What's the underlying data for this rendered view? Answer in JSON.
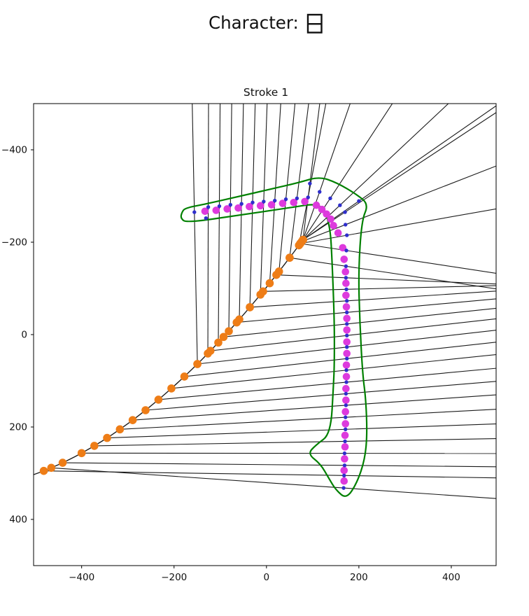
{
  "chart_data": {
    "type": "scatter",
    "suptitle": "Character: 日",
    "suptitle_prefix": "Character: ",
    "title": "Stroke 1",
    "x_range": [
      -504,
      497
    ],
    "y_range": [
      -500,
      500
    ],
    "y_inverted": true,
    "x_ticks": [
      -400,
      -200,
      0,
      200,
      400
    ],
    "y_ticks": [
      -400,
      -200,
      0,
      200,
      400
    ],
    "x_tick_labels": [
      "−400",
      "−200",
      "0",
      "200",
      "400"
    ],
    "y_tick_labels": [
      "−400",
      "−200",
      "0",
      "200",
      "400"
    ],
    "grid": false,
    "legend": null,
    "colors": {
      "keypoint": "#dd3add",
      "sample": "#2e2ecc",
      "curve_point": "#ee7d17",
      "outline": "#008000",
      "ray": "#1b1b1b",
      "spine": "#1b1b1b",
      "axis": "#000000",
      "text": "#111111"
    },
    "outline": [
      [
        -176,
        -274
      ],
      [
        -130,
        -283
      ],
      [
        -60,
        -299
      ],
      [
        10,
        -315
      ],
      [
        70,
        -329
      ],
      [
        114,
        -342
      ],
      [
        152,
        -329
      ],
      [
        196,
        -303
      ],
      [
        221,
        -282
      ],
      [
        206,
        -247
      ],
      [
        199,
        -136
      ],
      [
        202,
        -27
      ],
      [
        208,
        85
      ],
      [
        215,
        139
      ],
      [
        218,
        215
      ],
      [
        213,
        270
      ],
      [
        196,
        321
      ],
      [
        173,
        356
      ],
      [
        150,
        336
      ],
      [
        135,
        311
      ],
      [
        117,
        280
      ],
      [
        89,
        258
      ],
      [
        108,
        238
      ],
      [
        139,
        215
      ],
      [
        145,
        110
      ],
      [
        147,
        64
      ],
      [
        147,
        -30
      ],
      [
        142,
        -160
      ],
      [
        138,
        -232
      ],
      [
        124,
        -274
      ],
      [
        102,
        -283
      ],
      [
        59,
        -276
      ],
      [
        -62,
        -258
      ],
      [
        -173,
        -242
      ],
      [
        -186,
        -252
      ],
      [
        -183,
        -265
      ]
    ],
    "keypoints": [
      [
        -133,
        -267
      ],
      [
        -109,
        -269
      ],
      [
        -85,
        -272
      ],
      [
        -61,
        -274
      ],
      [
        -37,
        -277
      ],
      [
        -13,
        -279
      ],
      [
        11,
        -281
      ],
      [
        35,
        -284
      ],
      [
        59,
        -286
      ],
      [
        83,
        -288
      ],
      [
        108,
        -280
      ],
      [
        120,
        -271
      ],
      [
        130,
        -261
      ],
      [
        139,
        -250
      ],
      [
        145,
        -236
      ],
      [
        155,
        -220
      ],
      [
        165,
        -188
      ],
      [
        168,
        -163
      ],
      [
        171,
        -136
      ],
      [
        172,
        -111
      ],
      [
        172,
        -85
      ],
      [
        173,
        -60
      ],
      [
        174,
        -35
      ],
      [
        174,
        -10
      ],
      [
        174,
        16
      ],
      [
        174,
        41
      ],
      [
        173,
        66
      ],
      [
        173,
        91
      ],
      [
        172,
        117
      ],
      [
        172,
        142
      ],
      [
        171,
        167
      ],
      [
        171,
        193
      ],
      [
        170,
        218
      ],
      [
        170,
        243
      ],
      [
        169,
        269
      ],
      [
        168,
        294
      ],
      [
        168,
        317
      ]
    ],
    "samples": [
      [
        -156,
        -265
      ],
      [
        -126,
        -276
      ],
      [
        -102,
        -278
      ],
      [
        -78,
        -281
      ],
      [
        -54,
        -283
      ],
      [
        -30,
        -286
      ],
      [
        -6,
        -288
      ],
      [
        18,
        -290
      ],
      [
        42,
        -293
      ],
      [
        66,
        -295
      ],
      [
        90,
        -297
      ],
      [
        -131,
        -252
      ],
      [
        94,
        -327
      ],
      [
        115,
        -309
      ],
      [
        138,
        -295
      ],
      [
        159,
        -280
      ],
      [
        170,
        -265
      ],
      [
        200,
        -289
      ],
      [
        171,
        -238
      ],
      [
        174,
        -215
      ],
      [
        173,
        -182
      ],
      [
        172,
        -148
      ],
      [
        172,
        -123
      ],
      [
        173,
        -98
      ],
      [
        174,
        -73
      ],
      [
        174,
        -48
      ],
      [
        174,
        -23
      ],
      [
        174,
        2
      ],
      [
        174,
        27
      ],
      [
        174,
        52
      ],
      [
        173,
        77
      ],
      [
        173,
        103
      ],
      [
        172,
        128
      ],
      [
        172,
        153
      ],
      [
        171,
        179
      ],
      [
        171,
        205
      ],
      [
        170,
        231
      ],
      [
        169,
        257
      ],
      [
        169,
        283
      ],
      [
        168,
        305
      ],
      [
        167,
        332
      ]
    ],
    "spine": {
      "p0": [
        -482,
        295
      ],
      "c": [
        -210,
        188
      ],
      "p2": [
        79,
        -205
      ]
    },
    "rays": [
      {
        "t": 0.6,
        "s": 0
      },
      {
        "t": 0.64,
        "s": 1
      },
      {
        "t": 0.68,
        "s": 2
      },
      {
        "t": 0.72,
        "s": 3
      },
      {
        "t": 0.76,
        "s": 4
      },
      {
        "t": 0.8,
        "s": 5
      },
      {
        "t": 0.84,
        "s": 6
      },
      {
        "t": 0.875,
        "s": 7
      },
      {
        "t": 0.91,
        "s": 8
      },
      {
        "t": 0.95,
        "s": 9
      },
      {
        "t": 0.985,
        "s": 10
      },
      {
        "t": 1.0,
        "s": 12
      },
      {
        "t": 1.0,
        "s": 13
      },
      {
        "t": 1.0,
        "s": 14
      },
      {
        "t": 1.0,
        "s": 15
      },
      {
        "t": 1.0,
        "s": 16
      },
      {
        "t": 1.0,
        "s": 17
      },
      {
        "t": 0.995,
        "s": 18
      },
      {
        "t": 0.99,
        "s": 19
      },
      {
        "t": 0.99,
        "s": 20
      },
      {
        "t": 0.95,
        "s": 21
      },
      {
        "t": 0.9,
        "s": 22
      },
      {
        "t": 0.85,
        "s": 23
      },
      {
        "t": 0.8,
        "s": 24
      },
      {
        "t": 0.75,
        "s": 25
      },
      {
        "t": 0.7,
        "s": 26
      },
      {
        "t": 0.65,
        "s": 27
      },
      {
        "t": 0.6,
        "s": 28
      },
      {
        "t": 0.55,
        "s": 29
      },
      {
        "t": 0.5,
        "s": 30
      },
      {
        "t": 0.45,
        "s": 31
      },
      {
        "t": 0.4,
        "s": 32
      },
      {
        "t": 0.35,
        "s": 33
      },
      {
        "t": 0.3,
        "s": 34
      },
      {
        "t": 0.25,
        "s": 35
      },
      {
        "t": 0.2,
        "s": 36
      },
      {
        "t": 0.15,
        "s": 37
      },
      {
        "t": 0.075,
        "s": 38
      },
      {
        "t": 0.0,
        "s": 39
      },
      {
        "t": 0.03,
        "s": 40
      }
    ]
  }
}
